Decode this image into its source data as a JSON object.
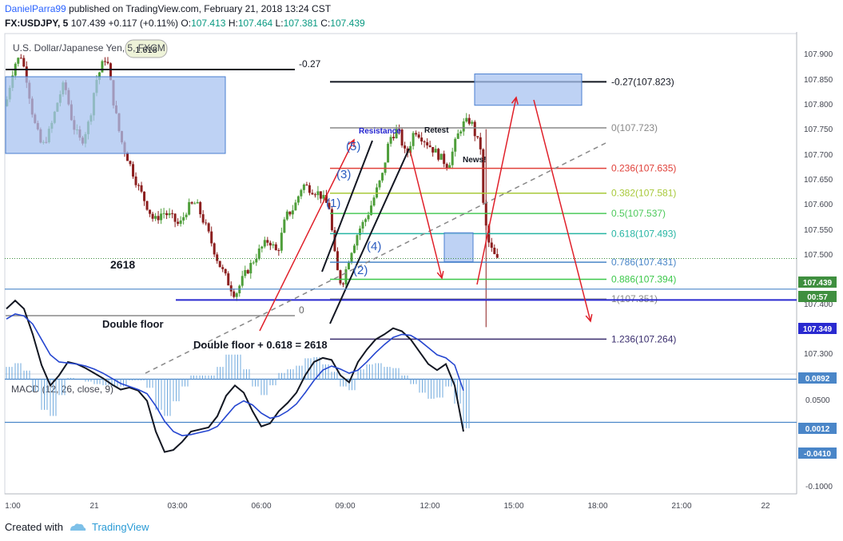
{
  "header": {
    "author": "DanielParra99",
    "published_text": "published on TradingView.com, February 21, 2018 13:24 CST",
    "symbol": "FX:USDJPY, 5",
    "last": "107.439",
    "change": "+0.117 (+0.11%)",
    "o_label": "O:",
    "o_value": "107.413",
    "h_label": "H:",
    "h_value": "107.464",
    "l_label": "L:",
    "l_value": "107.381",
    "c_label": "C:",
    "c_value": "107.439"
  },
  "chart_data": [
    {
      "type": "candlestick",
      "title": "U.S. Dollar/Japanese Yen, 5, FXCM",
      "x_ticks": [
        "1:00",
        "21",
        "03:00",
        "06:00",
        "09:00",
        "12:00",
        "15:00",
        "18:00",
        "21:00",
        "22"
      ],
      "y_ticks": [
        "107.900",
        "107.850",
        "107.800",
        "107.750",
        "107.700",
        "107.650",
        "107.600",
        "107.550",
        "107.500",
        "107.400",
        "107.300"
      ],
      "ylim": [
        107.255,
        107.935
      ],
      "price_badge": "107.439",
      "countdown": "00:57",
      "support_badge": "107.349",
      "support_level": 107.349,
      "last_price": 107.439,
      "fib_levels": [
        {
          "label": "-0.27(107.823)",
          "value": 107.823,
          "color": "#131722"
        },
        {
          "label": "0(107.723)",
          "value": 107.723,
          "color": "#888888"
        },
        {
          "label": "0.236(107.635)",
          "value": 107.635,
          "color": "#e0413a"
        },
        {
          "label": "0.382(107.581)",
          "value": 107.581,
          "color": "#a8c93a"
        },
        {
          "label": "0.5(107.537)",
          "value": 107.537,
          "color": "#4cc95a"
        },
        {
          "label": "0.618(107.493)",
          "value": 107.493,
          "color": "#26b5a3"
        },
        {
          "label": "0.786(107.431)",
          "value": 107.431,
          "color": "#4a86c8"
        },
        {
          "label": "0.886(107.394)",
          "value": 107.394,
          "color": "#3cc84a"
        },
        {
          "label": "1(107.351)",
          "value": 107.351,
          "color": "#888888"
        },
        {
          "label": "1.236(107.264)",
          "value": 107.264,
          "color": "#3a2e6e"
        }
      ],
      "annotations": {
        "left_fib_top": "-0.27",
        "left_fib_zero": "0",
        "bubble": "1.618",
        "big_label": "2618",
        "double_floor": "Double floor",
        "double_floor_formula": "Double floor + 0.618 = 2618",
        "resistance": "Resistance",
        "retest": "Retest",
        "news": "News!",
        "waves": [
          "(1)",
          "(2)",
          "(3)",
          "(4)",
          "(5)"
        ]
      }
    },
    {
      "type": "line",
      "title": "MACD (12, 26, close, 9)",
      "y_ticks": [
        "0.0500",
        "-0.0500",
        "-0.1000"
      ],
      "ylim": [
        -0.112,
        0.093
      ],
      "badges": [
        "0.0892",
        "0.0012",
        "-0.0410"
      ],
      "levels": [
        0.0892,
        0.0012,
        -0.041
      ],
      "series": [
        {
          "color": "#131722",
          "values": [
            0.07,
            0.078,
            0.07,
            0.045,
            0.015,
            -0.005,
            0.005,
            0.018,
            0.016,
            0.012,
            0.007,
            0.002,
            -0.004,
            -0.009,
            -0.007,
            -0.01,
            -0.02,
            -0.05,
            -0.07,
            -0.068,
            -0.06,
            -0.05,
            -0.048,
            -0.046,
            -0.035,
            -0.015,
            -0.005,
            -0.012,
            -0.03,
            -0.045,
            -0.042,
            -0.03,
            -0.022,
            -0.012,
            0.005,
            0.018,
            0.022,
            0.02,
            0.005,
            -0.002,
            0.018,
            0.03,
            0.04,
            0.045,
            0.051,
            0.048,
            0.04,
            0.028,
            0.016,
            0.01,
            0.016,
            -0.005,
            -0.05
          ]
        },
        {
          "color": "#2546d0",
          "values": [
            0.06,
            0.065,
            0.063,
            0.055,
            0.04,
            0.025,
            0.018,
            0.017,
            0.016,
            0.014,
            0.011,
            0.007,
            0.002,
            -0.003,
            -0.006,
            -0.009,
            -0.013,
            -0.025,
            -0.04,
            -0.05,
            -0.054,
            -0.053,
            -0.051,
            -0.049,
            -0.045,
            -0.035,
            -0.025,
            -0.02,
            -0.024,
            -0.032,
            -0.037,
            -0.035,
            -0.03,
            -0.023,
            -0.012,
            0.0,
            0.01,
            0.014,
            0.011,
            0.007,
            0.01,
            0.018,
            0.027,
            0.035,
            0.042,
            0.045,
            0.044,
            0.039,
            0.032,
            0.025,
            0.022,
            0.015,
            -0.01
          ]
        }
      ]
    }
  ],
  "footer": {
    "created_with": "Created with",
    "brand": "TradingView"
  }
}
